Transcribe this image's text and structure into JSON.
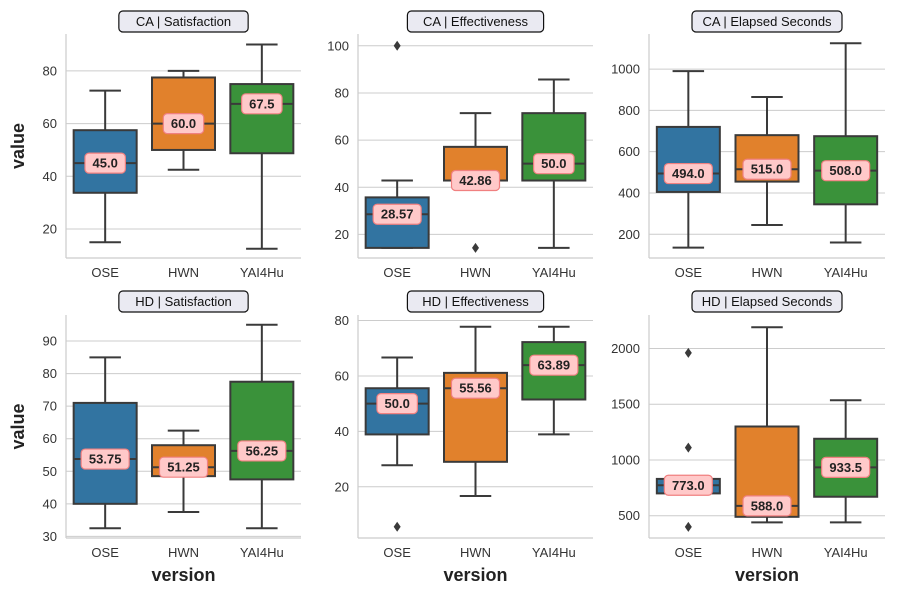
{
  "chart_data": {
    "type": "box",
    "x_axis_title": "version",
    "y_axis_title": "value",
    "categories": [
      "OSE",
      "HWN",
      "YAI4Hu"
    ],
    "colors": {
      "OSE": "#3274a1",
      "HWN": "#e1812c",
      "YAI4Hu": "#3a923a"
    },
    "median_label_style": {
      "background": "#ffc9c9",
      "border": "#f08080"
    },
    "panels": [
      {
        "title": "CA | Satisfaction",
        "ylim": [
          9,
          94
        ],
        "yticks": [
          20,
          40,
          60,
          80
        ],
        "boxes": [
          {
            "category": "OSE",
            "whisker_low": 15,
            "q1": 33.75,
            "median": 45.0,
            "q3": 57.5,
            "whisker_high": 72.5,
            "outliers": [],
            "median_label": "45.0"
          },
          {
            "category": "HWN",
            "whisker_low": 42.5,
            "q1": 50.0,
            "median": 60.0,
            "q3": 77.5,
            "whisker_high": 80.0,
            "outliers": [],
            "median_label": "60.0"
          },
          {
            "category": "YAI4Hu",
            "whisker_low": 12.5,
            "q1": 48.75,
            "median": 67.5,
            "q3": 75.0,
            "whisker_high": 90.0,
            "outliers": [],
            "median_label": "67.5"
          }
        ]
      },
      {
        "title": "CA | Effectiveness",
        "ylim": [
          10,
          105
        ],
        "yticks": [
          20,
          40,
          60,
          80,
          100
        ],
        "boxes": [
          {
            "category": "OSE",
            "whisker_low": 14.29,
            "q1": 14.29,
            "median": 28.57,
            "q3": 35.71,
            "whisker_high": 42.86,
            "outliers": [
              100.0
            ],
            "median_label": "28.57"
          },
          {
            "category": "HWN",
            "whisker_low": 42.86,
            "q1": 42.86,
            "median": 42.86,
            "q3": 57.14,
            "whisker_high": 71.43,
            "outliers": [
              14.29
            ],
            "median_label": "42.86"
          },
          {
            "category": "YAI4Hu",
            "whisker_low": 14.29,
            "q1": 42.86,
            "median": 50.0,
            "q3": 71.43,
            "whisker_high": 85.71,
            "outliers": [],
            "median_label": "50.0"
          }
        ]
      },
      {
        "title": "CA | Elapsed Seconds",
        "ylim": [
          85,
          1170
        ],
        "yticks": [
          200,
          400,
          600,
          800,
          1000
        ],
        "boxes": [
          {
            "category": "OSE",
            "whisker_low": 135,
            "q1": 405,
            "median": 494.0,
            "q3": 720,
            "whisker_high": 990,
            "outliers": [],
            "median_label": "494.0"
          },
          {
            "category": "HWN",
            "whisker_low": 245,
            "q1": 455,
            "median": 515.0,
            "q3": 680,
            "whisker_high": 865,
            "outliers": [],
            "median_label": "515.0"
          },
          {
            "category": "YAI4Hu",
            "whisker_low": 160,
            "q1": 345,
            "median": 508.0,
            "q3": 675,
            "whisker_high": 1125,
            "outliers": [],
            "median_label": "508.0"
          }
        ]
      },
      {
        "title": "HD | Satisfaction",
        "ylim": [
          29.5,
          98
        ],
        "yticks": [
          30,
          40,
          50,
          60,
          70,
          80,
          90
        ],
        "boxes": [
          {
            "category": "OSE",
            "whisker_low": 32.5,
            "q1": 40.0,
            "median": 53.75,
            "q3": 71.0,
            "whisker_high": 85.0,
            "outliers": [],
            "median_label": "53.75"
          },
          {
            "category": "HWN",
            "whisker_low": 37.5,
            "q1": 48.5,
            "median": 51.25,
            "q3": 58.0,
            "whisker_high": 62.5,
            "outliers": [],
            "median_label": "51.25"
          },
          {
            "category": "YAI4Hu",
            "whisker_low": 32.5,
            "q1": 47.5,
            "median": 56.25,
            "q3": 77.5,
            "whisker_high": 95.0,
            "outliers": [],
            "median_label": "56.25"
          }
        ]
      },
      {
        "title": "HD | Effectiveness",
        "ylim": [
          1.5,
          82
        ],
        "yticks": [
          20,
          40,
          60,
          80
        ],
        "boxes": [
          {
            "category": "OSE",
            "whisker_low": 27.78,
            "q1": 38.89,
            "median": 50.0,
            "q3": 55.56,
            "whisker_high": 66.67,
            "outliers": [
              5.56
            ],
            "median_label": "50.0"
          },
          {
            "category": "HWN",
            "whisker_low": 16.67,
            "q1": 29.0,
            "median": 55.56,
            "q3": 61.11,
            "whisker_high": 77.78,
            "outliers": [],
            "median_label": "55.56"
          },
          {
            "category": "YAI4Hu",
            "whisker_low": 38.89,
            "q1": 51.5,
            "median": 63.89,
            "q3": 72.22,
            "whisker_high": 77.78,
            "outliers": [],
            "median_label": "63.89"
          }
        ]
      },
      {
        "title": "HD | Elapsed Seconds",
        "ylim": [
          300,
          2300
        ],
        "yticks": [
          500,
          1000,
          1500,
          2000
        ],
        "boxes": [
          {
            "category": "OSE",
            "whisker_low": 700,
            "q1": 700,
            "median": 773.0,
            "q3": 830,
            "whisker_high": 830,
            "outliers": [
              400,
              1110,
              1960
            ],
            "median_label": "773.0"
          },
          {
            "category": "HWN",
            "whisker_low": 440,
            "q1": 490,
            "median": 588.0,
            "q3": 1300,
            "whisker_high": 2190,
            "outliers": [],
            "median_label": "588.0"
          },
          {
            "category": "YAI4Hu",
            "whisker_low": 440,
            "q1": 670,
            "median": 933.5,
            "q3": 1190,
            "whisker_high": 1535,
            "outliers": [],
            "median_label": "933.5"
          }
        ]
      }
    ]
  }
}
